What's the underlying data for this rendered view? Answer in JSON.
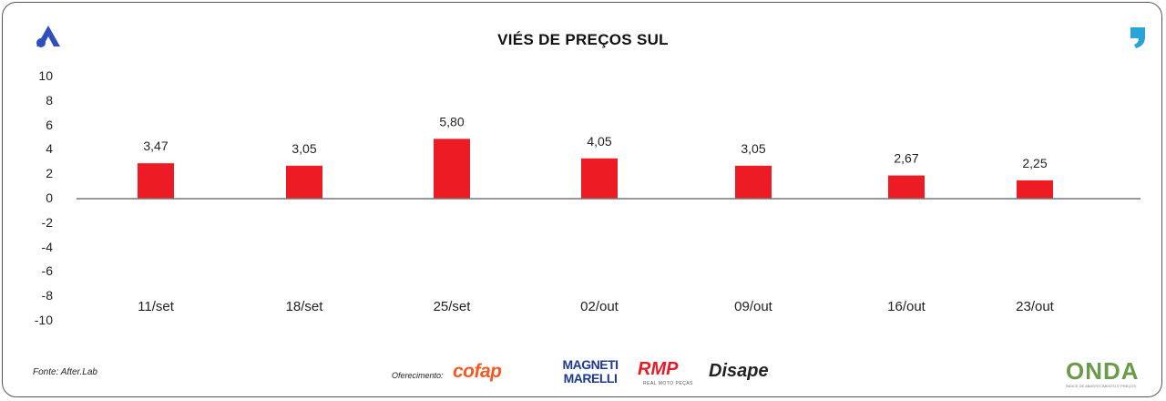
{
  "chart_data": {
    "type": "bar",
    "title": "VIÉS DE PREÇOS SUL",
    "categories": [
      "11/set",
      "18/set",
      "25/set",
      "02/out",
      "09/out",
      "16/out",
      "23/out"
    ],
    "values": [
      3.47,
      3.05,
      5.8,
      4.05,
      3.05,
      2.67,
      2.25
    ],
    "value_labels": [
      "3,47",
      "3,05",
      "5,80",
      "4,05",
      "3,05",
      "2,67",
      "2,25"
    ],
    "bar_heights_est": [
      2.9,
      2.7,
      4.9,
      3.3,
      2.7,
      1.9,
      1.5
    ],
    "ylim": [
      -10,
      10
    ],
    "yticks": [
      "10",
      "8",
      "6",
      "4",
      "2",
      "0",
      "-2",
      "-4",
      "-6",
      "-8",
      "-10"
    ],
    "xlabel": "",
    "ylabel": "",
    "grid": false,
    "bar_color": "#ed1c24"
  },
  "footer": {
    "source": "Fonte: After.Lab",
    "sponsor_label": "Oferecimento:",
    "sponsors": {
      "cofap": "cofap",
      "magneti": "MAGNETI MARELLI",
      "rmp": "RMP",
      "rmp_sub": "REAL MOTO PEÇAS",
      "disape": "Disape",
      "onda": "ONDA",
      "onda_sub": "ÍNDICE DE ABASTECIMENTO E PREÇOS"
    }
  },
  "logos": {
    "left": "aftermarket-a-logo-icon",
    "right": "quote-mark-logo-icon"
  }
}
